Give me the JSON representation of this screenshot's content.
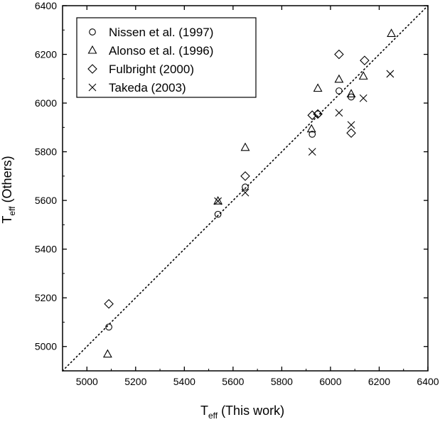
{
  "chart_data": {
    "type": "scatter",
    "xlabel": {
      "base": "T",
      "sub": "eff",
      "rest": " (This work)"
    },
    "ylabel": {
      "base": "T",
      "sub": "eff",
      "rest": " (Others)"
    },
    "xlim": [
      4900,
      6400
    ],
    "ylim": [
      4900,
      6400
    ],
    "xticks": [
      5000,
      5200,
      5400,
      5600,
      5800,
      6000,
      6200,
      6400
    ],
    "yticks": [
      5000,
      5200,
      5400,
      5600,
      5800,
      6000,
      6200,
      6400
    ],
    "grid": false,
    "legend_position": "top-left",
    "reference_line": {
      "style": "dotted",
      "points": [
        [
          4900,
          4900
        ],
        [
          6400,
          6400
        ]
      ]
    },
    "series": [
      {
        "name": "Nissen et al. (1997)",
        "marker": "circle",
        "points": [
          [
            5090,
            5080
          ],
          [
            5538,
            5543
          ],
          [
            5650,
            5655
          ],
          [
            5925,
            5872
          ],
          [
            5948,
            5955
          ],
          [
            6035,
            6050
          ],
          [
            6085,
            6025
          ]
        ]
      },
      {
        "name": "Alonso et al. (1996)",
        "marker": "triangle",
        "points": [
          [
            5085,
            4968
          ],
          [
            5538,
            5597
          ],
          [
            5650,
            5817
          ],
          [
            5922,
            5893
          ],
          [
            5948,
            6060
          ],
          [
            6035,
            6097
          ],
          [
            6085,
            6037
          ],
          [
            6135,
            6110
          ],
          [
            6250,
            6285
          ]
        ]
      },
      {
        "name": "Fulbright (2000)",
        "marker": "diamond",
        "points": [
          [
            5090,
            5175
          ],
          [
            5650,
            5700
          ],
          [
            5925,
            5950
          ],
          [
            5948,
            5955
          ],
          [
            6035,
            6200
          ],
          [
            6085,
            5877
          ],
          [
            6140,
            6175
          ]
        ]
      },
      {
        "name": "Takeda (2003)",
        "marker": "x",
        "points": [
          [
            5538,
            5597
          ],
          [
            5650,
            5632
          ],
          [
            5925,
            5800
          ],
          [
            6035,
            5960
          ],
          [
            6085,
            5910
          ],
          [
            6135,
            6020
          ],
          [
            6245,
            6120
          ]
        ]
      }
    ]
  }
}
